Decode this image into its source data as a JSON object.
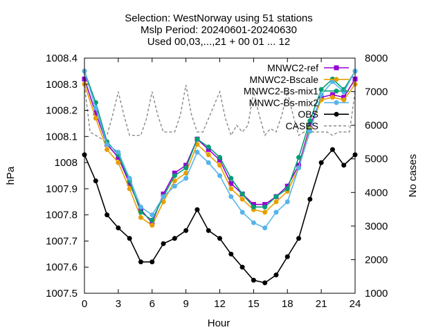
{
  "chart_data": {
    "type": "line",
    "title_lines": [
      "Selection: WestNorway using    51 stations",
      "Mslp   Period: 20240601-20240630",
      "Used 00,03,...,21 + 00 01 ... 12"
    ],
    "xlabel": "Hour",
    "ylabel": "hPa",
    "y2label": "No cases",
    "xlim": [
      0,
      24
    ],
    "ylim": [
      1007.5,
      1008.4
    ],
    "y2lim": [
      1000,
      8000
    ],
    "xticks": [
      "0",
      "3",
      "6",
      "9",
      "12",
      "15",
      "18",
      "21",
      "24"
    ],
    "yticks": [
      "1007.5",
      "1007.6",
      "1007.7",
      "1007.8",
      "1007.9",
      "1008",
      "1008.1",
      "1008.2",
      "1008.3",
      "1008.4"
    ],
    "y2ticks": [
      "1000",
      "2000",
      "3000",
      "4000",
      "5000",
      "6000",
      "7000",
      "8000"
    ],
    "grid": false,
    "legend_position": "top-right",
    "series": [
      {
        "name": "MNWC2-ref",
        "color": "#9400d3",
        "marker": "square",
        "axis": "y",
        "x": [
          0,
          1,
          2,
          3,
          4,
          5,
          6,
          7,
          8,
          9,
          10,
          11,
          12,
          13,
          14,
          15,
          16,
          17,
          18,
          19,
          20,
          21,
          22,
          23,
          24
        ],
        "values": [
          1008.32,
          1008.19,
          1008.07,
          1008.02,
          1007.92,
          1007.82,
          1007.77,
          1007.88,
          1007.96,
          1007.99,
          1008.09,
          1008.05,
          1008.01,
          1007.92,
          1007.88,
          1007.84,
          1007.84,
          1007.87,
          1007.91,
          1007.99,
          1008.14,
          1008.25,
          1008.26,
          1008.25,
          1008.32
        ]
      },
      {
        "name": "MNWC2-Bscale",
        "color": "#e69f00",
        "marker": "circle",
        "axis": "y",
        "x": [
          0,
          1,
          2,
          3,
          4,
          5,
          6,
          7,
          8,
          9,
          10,
          11,
          12,
          13,
          14,
          15,
          16,
          17,
          18,
          19,
          20,
          21,
          22,
          23,
          24
        ],
        "values": [
          1008.3,
          1008.17,
          1008.05,
          1008.0,
          1007.9,
          1007.79,
          1007.76,
          1007.85,
          1007.93,
          1007.96,
          1008.07,
          1008.03,
          1007.99,
          1007.9,
          1007.86,
          1007.82,
          1007.81,
          1007.85,
          1007.89,
          1007.98,
          1008.13,
          1008.24,
          1008.25,
          1008.24,
          1008.3
        ]
      },
      {
        "name": "MNWC2-Bs-mix1",
        "color": "#009e73",
        "marker": "circle",
        "axis": "y",
        "x": [
          0,
          1,
          2,
          3,
          4,
          5,
          6,
          7,
          8,
          9,
          10,
          11,
          12,
          13,
          14,
          15,
          16,
          17,
          18,
          19,
          20,
          21,
          22,
          23,
          24
        ],
        "values": [
          1008.35,
          1008.23,
          1008.08,
          1008.03,
          1007.93,
          1007.81,
          1007.78,
          1007.87,
          1007.95,
          1007.98,
          1008.09,
          1008.06,
          1008.02,
          1007.94,
          1007.88,
          1007.83,
          1007.83,
          1007.87,
          1007.9,
          1008.02,
          1008.16,
          1008.28,
          1008.32,
          1008.28,
          1008.35
        ]
      },
      {
        "name": "MNWC-Bs-mix2",
        "color": "#56b4e9",
        "marker": "circle",
        "axis": "y",
        "x": [
          0,
          1,
          2,
          3,
          4,
          5,
          6,
          7,
          8,
          9,
          10,
          11,
          12,
          13,
          14,
          15,
          16,
          17,
          18,
          19,
          20,
          21,
          22,
          23,
          24
        ],
        "values": [
          1008.35,
          1008.21,
          1008.07,
          1008.04,
          1007.94,
          1007.83,
          1007.8,
          1007.87,
          1007.91,
          1007.94,
          1008.04,
          1008.0,
          1007.95,
          1007.87,
          1007.81,
          1007.77,
          1007.75,
          1007.81,
          1007.85,
          1007.98,
          1008.12,
          1008.26,
          1008.31,
          1008.27,
          1008.35
        ]
      },
      {
        "name": "OBS",
        "color": "#000000",
        "marker": "circle",
        "axis": "y",
        "x": [
          0,
          1,
          2,
          3,
          4,
          5,
          6,
          7,
          8,
          9,
          10,
          11,
          12,
          13,
          14,
          15,
          16,
          17,
          18,
          19,
          20,
          21,
          22,
          23,
          24
        ],
        "values": [
          1008.03,
          1007.93,
          1007.8,
          1007.75,
          1007.71,
          1007.62,
          1007.62,
          1007.69,
          1007.71,
          1007.74,
          1007.82,
          1007.74,
          1007.71,
          1007.65,
          1007.6,
          1007.55,
          1007.54,
          1007.57,
          1007.64,
          1007.71,
          1007.86,
          1008.0,
          1008.05,
          1007.99,
          1008.03
        ]
      },
      {
        "name": "CASES",
        "color": "#888888",
        "marker": "none",
        "dash": true,
        "axis": "y2",
        "x": [
          0,
          0.5,
          1,
          1.5,
          2,
          2.5,
          3,
          3.5,
          4,
          4.5,
          5,
          5.5,
          6,
          6.5,
          7,
          7.5,
          8,
          8.5,
          9,
          9.5,
          10,
          10.5,
          11,
          11.5,
          12,
          12.5,
          13,
          13.5,
          14,
          14.5,
          15,
          15.5,
          16,
          16.5,
          17,
          17.5,
          18,
          18.5,
          19,
          19.5,
          20,
          20.5,
          21,
          21.5,
          22,
          22.5,
          23,
          23.5,
          24
        ],
        "values": [
          7200,
          5800,
          5700,
          5600,
          5700,
          6300,
          7000,
          6300,
          5700,
          5700,
          5700,
          6200,
          7000,
          6300,
          5800,
          5800,
          5800,
          6300,
          7200,
          6300,
          5800,
          5800,
          6200,
          6600,
          7000,
          6200,
          5700,
          6000,
          5800,
          6000,
          7000,
          6300,
          5700,
          5900,
          5800,
          6300,
          7000,
          6300,
          5700,
          5800,
          5800,
          5800,
          5800,
          5800,
          5700,
          5800,
          5800,
          5800,
          7000
        ]
      }
    ]
  }
}
